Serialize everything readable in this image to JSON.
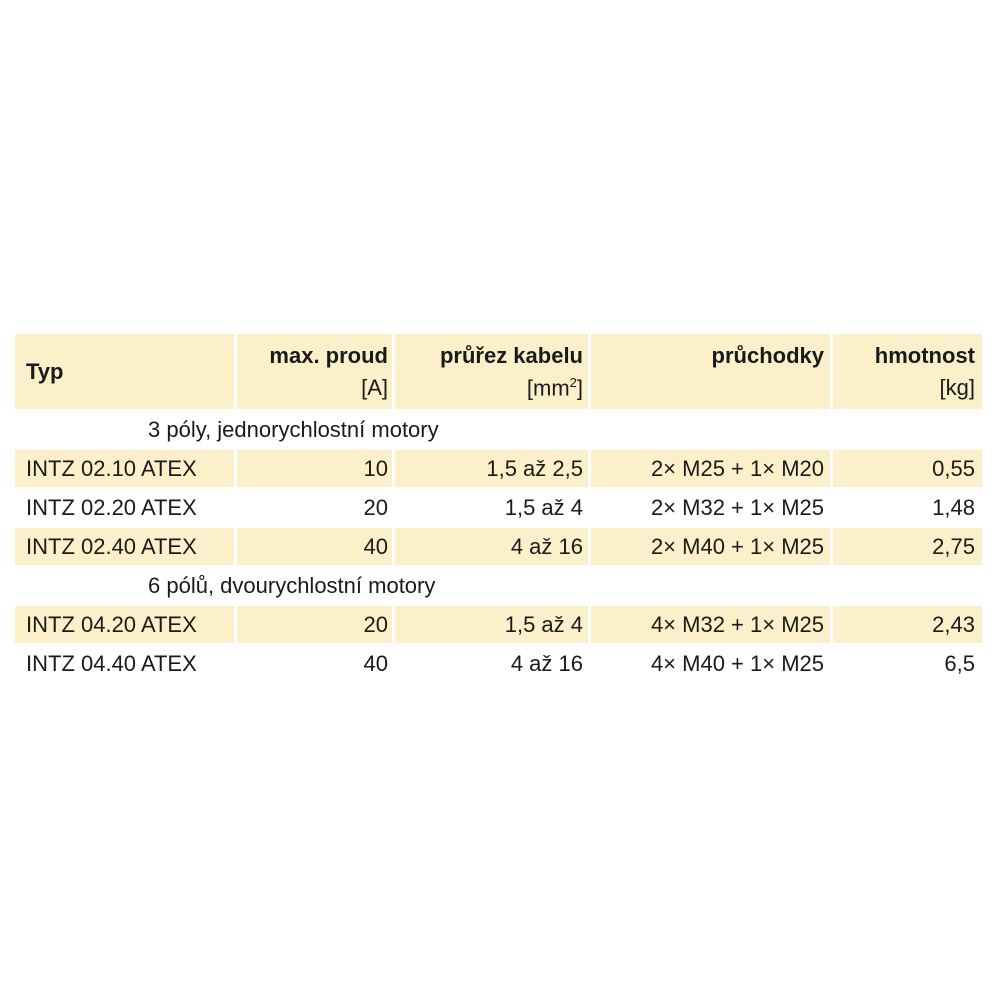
{
  "header": {
    "typ": "Typ",
    "current": {
      "title": "max. proud",
      "unit": "[A]"
    },
    "cable": {
      "title": "průřez kabelu",
      "unit_base": "[mm",
      "unit_sup": "2",
      "unit_end": "]"
    },
    "glands": {
      "title": "průchodky"
    },
    "weight": {
      "title": "hmotnost",
      "unit": "[kg]"
    }
  },
  "groups": [
    {
      "label": "3 póly, jednorychlostní motory",
      "rows": [
        {
          "type": "INTZ 02.10 ATEX",
          "current": "10",
          "cable": "1,5 až 2,5",
          "glands": "2× M25 + 1× M20",
          "weight": "0,55"
        },
        {
          "type": "INTZ 02.20 ATEX",
          "current": "20",
          "cable": "1,5 až 4",
          "glands": "2× M32 + 1× M25",
          "weight": "1,48"
        },
        {
          "type": "INTZ 02.40 ATEX",
          "current": "40",
          "cable": "4 až 16",
          "glands": "2× M40 + 1× M25",
          "weight": "2,75"
        }
      ]
    },
    {
      "label": "6 pólů, dvourychlostní motory",
      "rows": [
        {
          "type": "INTZ 04.20 ATEX",
          "current": "20",
          "cable": "1,5 až 4",
          "glands": "4× M32 + 1× M25",
          "weight": "2,43"
        },
        {
          "type": "INTZ 04.40 ATEX",
          "current": "40",
          "cable": "4 až 16",
          "glands": "4× M40 + 1× M25",
          "weight": "6,5"
        }
      ]
    }
  ]
}
